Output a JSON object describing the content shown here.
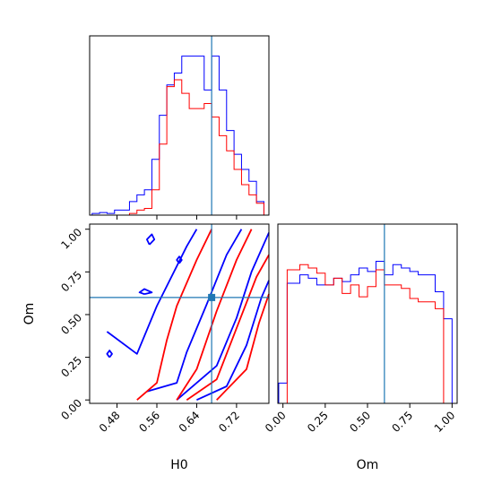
{
  "chart_data": {
    "type": "corner",
    "parameters": [
      "H0",
      "Om"
    ],
    "truth": {
      "H0": 0.67,
      "Om": 0.6
    },
    "colors": {
      "blue": "#0000ff",
      "red": "#ff0000",
      "truth": "#1f77b4"
    },
    "x_ticks_H0": [
      "0.48",
      "0.56",
      "0.64",
      "0.72"
    ],
    "y_ticks_Om": [
      "0.00",
      "0.25",
      "0.50",
      "0.75",
      "1.00"
    ],
    "x_ticks_Om": [
      "0.00",
      "0.25",
      "0.50",
      "0.75",
      "1.00"
    ],
    "xlim_H0": [
      0.425,
      0.785
    ],
    "ylim_Om": [
      -0.02,
      1.03
    ],
    "xlim_Om": [
      -0.03,
      1.03
    ],
    "hist_H0": {
      "bin_edges": [
        0.43,
        0.445,
        0.46,
        0.475,
        0.49,
        0.505,
        0.52,
        0.535,
        0.55,
        0.565,
        0.58,
        0.595,
        0.61,
        0.625,
        0.64,
        0.655,
        0.67,
        0.685,
        0.7,
        0.715,
        0.73,
        0.745,
        0.76,
        0.775
      ],
      "ymax": 1.0,
      "blue": [
        0.01,
        0.015,
        0.01,
        0.03,
        0.03,
        0.08,
        0.12,
        0.15,
        0.33,
        0.59,
        0.77,
        0.84,
        0.94,
        0.94,
        0.94,
        0.74,
        0.94,
        0.74,
        0.5,
        0.36,
        0.27,
        0.2,
        0.08
      ],
      "red": [
        0.0,
        0.0,
        0.0,
        0.0,
        0.0,
        0.01,
        0.03,
        0.04,
        0.15,
        0.42,
        0.76,
        0.8,
        0.72,
        0.63,
        0.63,
        0.66,
        0.58,
        0.47,
        0.38,
        0.27,
        0.18,
        0.12,
        0.07
      ]
    },
    "hist_Om": {
      "bin_edges": [
        -0.025,
        0.0,
        0.025,
        0.05,
        0.1,
        0.15,
        0.2,
        0.25,
        0.3,
        0.35,
        0.4,
        0.45,
        0.5,
        0.55,
        0.6,
        0.65,
        0.7,
        0.75,
        0.8,
        0.85,
        0.9,
        0.95,
        1.0
      ],
      "ymax": 1.0,
      "blue": [
        0.12,
        0.12,
        0.71,
        0.71,
        0.76,
        0.74,
        0.7,
        0.7,
        0.74,
        0.72,
        0.76,
        0.8,
        0.78,
        0.84,
        0.76,
        0.82,
        0.8,
        0.78,
        0.76,
        0.76,
        0.66,
        0.5
      ],
      "red": [
        0.0,
        0.0,
        0.79,
        0.79,
        0.82,
        0.8,
        0.77,
        0.7,
        0.74,
        0.65,
        0.7,
        0.63,
        0.69,
        0.79,
        0.7,
        0.7,
        0.68,
        0.62,
        0.6,
        0.6,
        0.56,
        0.0
      ]
    },
    "contours": {
      "blue": [
        [
          [
            0.46,
            0.4
          ],
          [
            0.52,
            0.27
          ],
          [
            0.56,
            0.55
          ],
          [
            0.62,
            0.9
          ],
          [
            0.64,
            1.0
          ]
        ],
        [
          [
            0.54,
            0.05
          ],
          [
            0.6,
            0.1
          ],
          [
            0.62,
            0.28
          ],
          [
            0.66,
            0.56
          ],
          [
            0.7,
            0.85
          ],
          [
            0.73,
            1.0
          ]
        ],
        [
          [
            0.6,
            0.0
          ],
          [
            0.68,
            0.2
          ],
          [
            0.72,
            0.48
          ],
          [
            0.75,
            0.75
          ],
          [
            0.785,
            0.98
          ]
        ],
        [
          [
            0.64,
            0.0
          ],
          [
            0.7,
            0.08
          ],
          [
            0.74,
            0.32
          ],
          [
            0.77,
            0.6
          ],
          [
            0.785,
            0.7
          ]
        ],
        [
          [
            0.465,
            0.25
          ],
          [
            0.47,
            0.27
          ],
          [
            0.465,
            0.29
          ],
          [
            0.46,
            0.27
          ],
          [
            0.465,
            0.25
          ]
        ],
        [
          [
            0.535,
            0.62
          ],
          [
            0.55,
            0.63
          ],
          [
            0.535,
            0.65
          ],
          [
            0.525,
            0.63
          ],
          [
            0.535,
            0.62
          ]
        ],
        [
          [
            0.545,
            0.91
          ],
          [
            0.555,
            0.94
          ],
          [
            0.55,
            0.97
          ],
          [
            0.54,
            0.94
          ],
          [
            0.545,
            0.91
          ]
        ],
        [
          [
            0.605,
            0.8
          ],
          [
            0.61,
            0.82
          ],
          [
            0.605,
            0.84
          ],
          [
            0.6,
            0.82
          ],
          [
            0.605,
            0.8
          ]
        ]
      ],
      "red": [
        [
          [
            0.52,
            0.0
          ],
          [
            0.56,
            0.1
          ],
          [
            0.58,
            0.35
          ],
          [
            0.6,
            0.55
          ],
          [
            0.64,
            0.82
          ],
          [
            0.67,
            1.0
          ]
        ],
        [
          [
            0.6,
            0.0
          ],
          [
            0.64,
            0.18
          ],
          [
            0.68,
            0.52
          ],
          [
            0.72,
            0.82
          ],
          [
            0.75,
            1.0
          ]
        ],
        [
          [
            0.62,
            0.0
          ],
          [
            0.68,
            0.12
          ],
          [
            0.72,
            0.42
          ],
          [
            0.76,
            0.72
          ],
          [
            0.785,
            0.85
          ]
        ],
        [
          [
            0.68,
            0.0
          ],
          [
            0.74,
            0.18
          ],
          [
            0.765,
            0.45
          ],
          [
            0.785,
            0.62
          ]
        ]
      ]
    }
  }
}
